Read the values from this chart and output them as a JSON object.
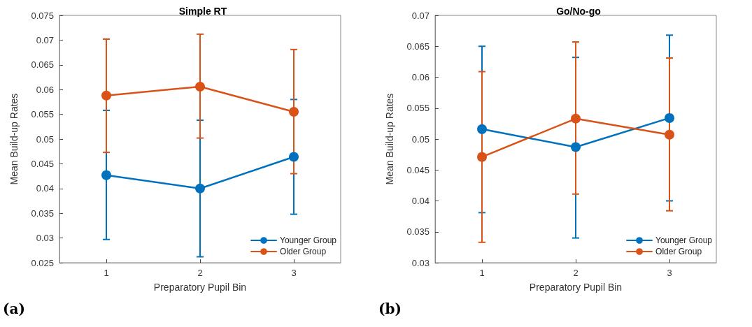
{
  "chart_data": [
    {
      "type": "line",
      "title": "Simple RT",
      "xlabel": "Preparatory Pupil Bin",
      "ylabel": "Mean Build-up Rates",
      "categories": [
        "1",
        "2",
        "3"
      ],
      "ylim": [
        0.025,
        0.075
      ],
      "yticks": [
        0.025,
        0.03,
        0.035,
        0.04,
        0.045,
        0.05,
        0.055,
        0.06,
        0.065,
        0.07,
        0.075
      ],
      "grid": false,
      "legend": "bottom right",
      "marker": "circle",
      "line_style": "solid",
      "annotations": [
        "(a)"
      ],
      "series": [
        {
          "name": "Younger Group",
          "color": "#0072bd",
          "values": [
            0.0427,
            0.04,
            0.0464
          ],
          "errors": [
            [
              0.0297,
              0.0558
            ],
            [
              0.0262,
              0.0538
            ],
            [
              0.0348,
              0.058
            ]
          ]
        },
        {
          "name": "Older Group",
          "color": "#d95319",
          "values": [
            0.0588,
            0.0606,
            0.0555
          ],
          "errors": [
            [
              0.0473,
              0.0702
            ],
            [
              0.0502,
              0.0712
            ],
            [
              0.043,
              0.0681
            ]
          ]
        }
      ]
    },
    {
      "type": "line",
      "title": "Go/No-go",
      "xlabel": "Preparatory Pupil Bin",
      "ylabel": "Mean Build-up Rates",
      "categories": [
        "1",
        "2",
        "3"
      ],
      "ylim": [
        0.03,
        0.07
      ],
      "yticks": [
        0.03,
        0.035,
        0.04,
        0.045,
        0.05,
        0.055,
        0.06,
        0.065,
        0.07
      ],
      "grid": false,
      "legend": "bottom right",
      "marker": "circle",
      "line_style": "solid",
      "annotations": [
        "(b)"
      ],
      "series": [
        {
          "name": "Younger Group",
          "color": "#0072bd",
          "values": [
            0.0516,
            0.0487,
            0.0534
          ],
          "errors": [
            [
              0.0381,
              0.065
            ],
            [
              0.034,
              0.0632
            ],
            [
              0.04,
              0.0668
            ]
          ]
        },
        {
          "name": "Older Group",
          "color": "#d95319",
          "values": [
            0.0471,
            0.0533,
            0.0507
          ],
          "errors": [
            [
              0.0333,
              0.0609
            ],
            [
              0.0411,
              0.0657
            ],
            [
              0.0384,
              0.0631
            ]
          ]
        }
      ]
    }
  ]
}
